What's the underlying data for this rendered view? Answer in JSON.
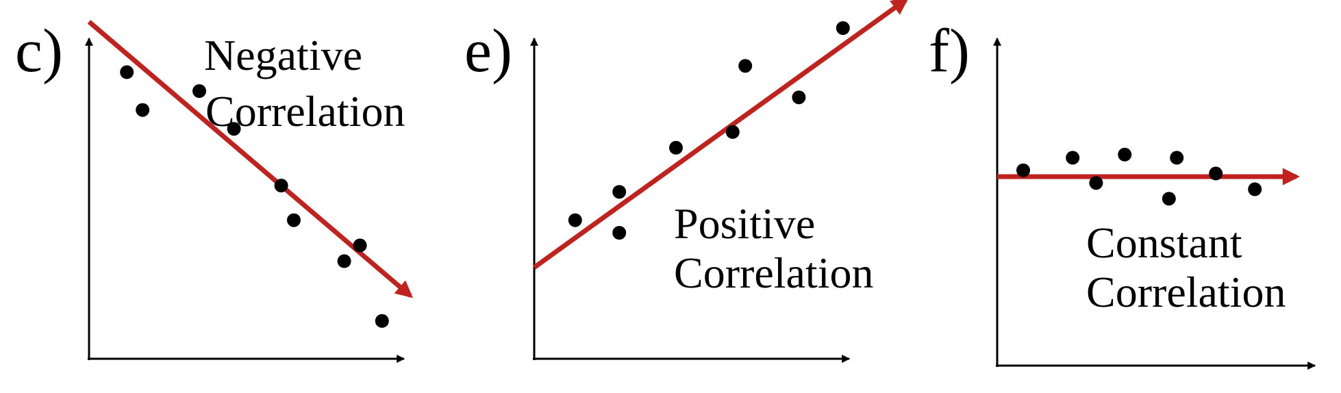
{
  "colors": {
    "axis": "#000000",
    "trend": "#C0221E",
    "point": "#000000"
  },
  "panels": [
    {
      "id": "c",
      "panel_label": "c)",
      "title_lines": [
        "Negative",
        "Correlation"
      ],
      "trend": "negative",
      "chart_data": {
        "type": "scatter",
        "points": [
          [
            1.2,
            9.1
          ],
          [
            1.7,
            7.9
          ],
          [
            3.5,
            8.5
          ],
          [
            4.6,
            7.3
          ],
          [
            6.1,
            5.5
          ],
          [
            6.5,
            4.4
          ],
          [
            8.1,
            3.1
          ],
          [
            8.6,
            3.6
          ],
          [
            9.3,
            1.2
          ]
        ],
        "trend_line": [
          [
            0,
            10.7
          ],
          [
            10.2,
            2.0
          ]
        ]
      }
    },
    {
      "id": "e",
      "panel_label": "e)",
      "title_lines": [
        "Positive",
        "Correlation"
      ],
      "trend": "positive",
      "chart_data": {
        "type": "scatter",
        "points": [
          [
            1.3,
            4.4
          ],
          [
            2.7,
            5.3
          ],
          [
            2.7,
            4.0
          ],
          [
            4.5,
            6.7
          ],
          [
            6.3,
            7.2
          ],
          [
            6.7,
            9.3
          ],
          [
            8.4,
            8.3
          ],
          [
            9.8,
            10.5
          ]
        ],
        "trend_line": [
          [
            0,
            2.9
          ],
          [
            11.8,
            11.4
          ]
        ]
      }
    },
    {
      "id": "f",
      "panel_label": "f)",
      "title_lines": [
        "Constant",
        "Correlation"
      ],
      "trend": "constant",
      "chart_data": {
        "type": "scatter",
        "points": [
          [
            1.0,
            6.2
          ],
          [
            2.9,
            6.6
          ],
          [
            3.8,
            5.8
          ],
          [
            4.9,
            6.7
          ],
          [
            6.6,
            5.3
          ],
          [
            6.9,
            6.6
          ],
          [
            8.4,
            6.1
          ],
          [
            9.9,
            5.6
          ]
        ],
        "trend_line": [
          [
            0,
            6.0
          ],
          [
            11.5,
            6.0
          ]
        ]
      }
    }
  ]
}
